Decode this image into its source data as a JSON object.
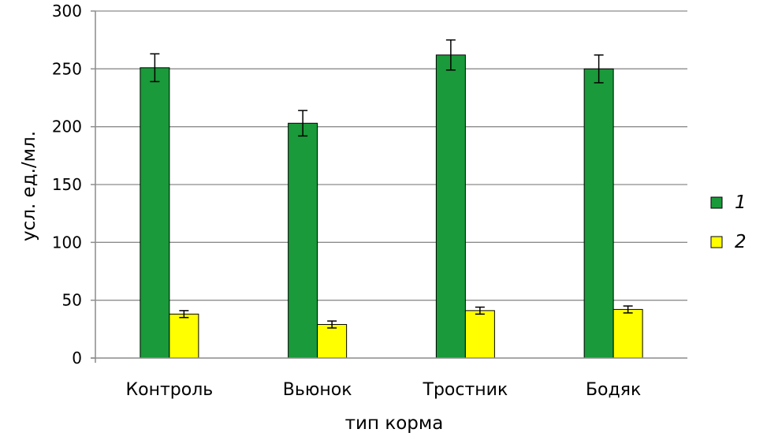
{
  "chart_data": {
    "type": "bar",
    "title": "",
    "xlabel": "тип корма",
    "ylabel": "усл. ед./мл.",
    "ylim": [
      0,
      300
    ],
    "yticks": [
      0,
      50,
      100,
      150,
      200,
      250,
      300
    ],
    "grid": true,
    "legend": "right",
    "categories": [
      "Контроль",
      "Вьюнок",
      "Тростник",
      "Бодяк"
    ],
    "series": [
      {
        "name": "1",
        "color": "#1a9a3a",
        "values": [
          251,
          203,
          262,
          250
        ],
        "errors": [
          12,
          11,
          13,
          12
        ]
      },
      {
        "name": "2",
        "color": "#ffff00",
        "values": [
          38,
          29,
          41,
          42
        ],
        "errors": [
          3,
          3,
          3,
          3
        ]
      }
    ]
  }
}
